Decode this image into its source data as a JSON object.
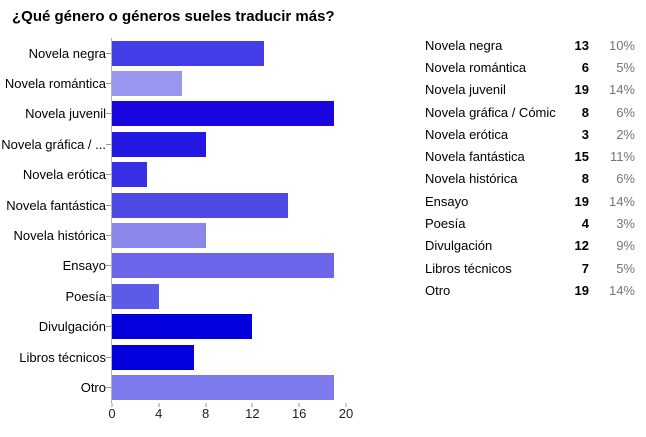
{
  "title": "¿Qué género o géneros sueles traducir más?",
  "colors": {
    "axis_line": "#b3b3b3",
    "tick": "#999999",
    "tick_label": "#222222",
    "percent_text": "#757575"
  },
  "chart_data": {
    "type": "bar",
    "orientation": "horizontal",
    "title": "¿Qué género o géneros sueles traducir más?",
    "categories": [
      "Novela negra",
      "Novela romántica",
      "Novela juvenil",
      "Novela gráfica / Cómic",
      "Novela erótica",
      "Novela fantástica",
      "Novela histórica",
      "Ensayo",
      "Poesía",
      "Divulgación",
      "Libros técnicos",
      "Otro"
    ],
    "axis_labels": [
      "Novela negra",
      "Novela romántica",
      "Novela juvenil",
      "Novela gráfica / ...",
      "Novela erótica",
      "Novela fantástica",
      "Novela histórica",
      "Ensayo",
      "Poesía",
      "Divulgación",
      "Libros técnicos",
      "Otro"
    ],
    "values": [
      13,
      6,
      19,
      8,
      3,
      15,
      8,
      19,
      4,
      12,
      7,
      19
    ],
    "percents": [
      "10%",
      "5%",
      "14%",
      "6%",
      "2%",
      "11%",
      "6%",
      "14%",
      "3%",
      "9%",
      "5%",
      "14%"
    ],
    "bar_colors": [
      "#443ee8",
      "#9997ef",
      "#1c06e0",
      "#2419e2",
      "#3a2fe8",
      "#4f4ae6",
      "#8a86ec",
      "#6c67ea",
      "#5d5ae8",
      "#0300dd",
      "#0300dd",
      "#7d7aee"
    ],
    "xlim": [
      0,
      20
    ],
    "x_ticks": [
      0,
      4,
      8,
      12,
      16,
      20
    ],
    "grid": false,
    "legend_position": "right-table"
  }
}
